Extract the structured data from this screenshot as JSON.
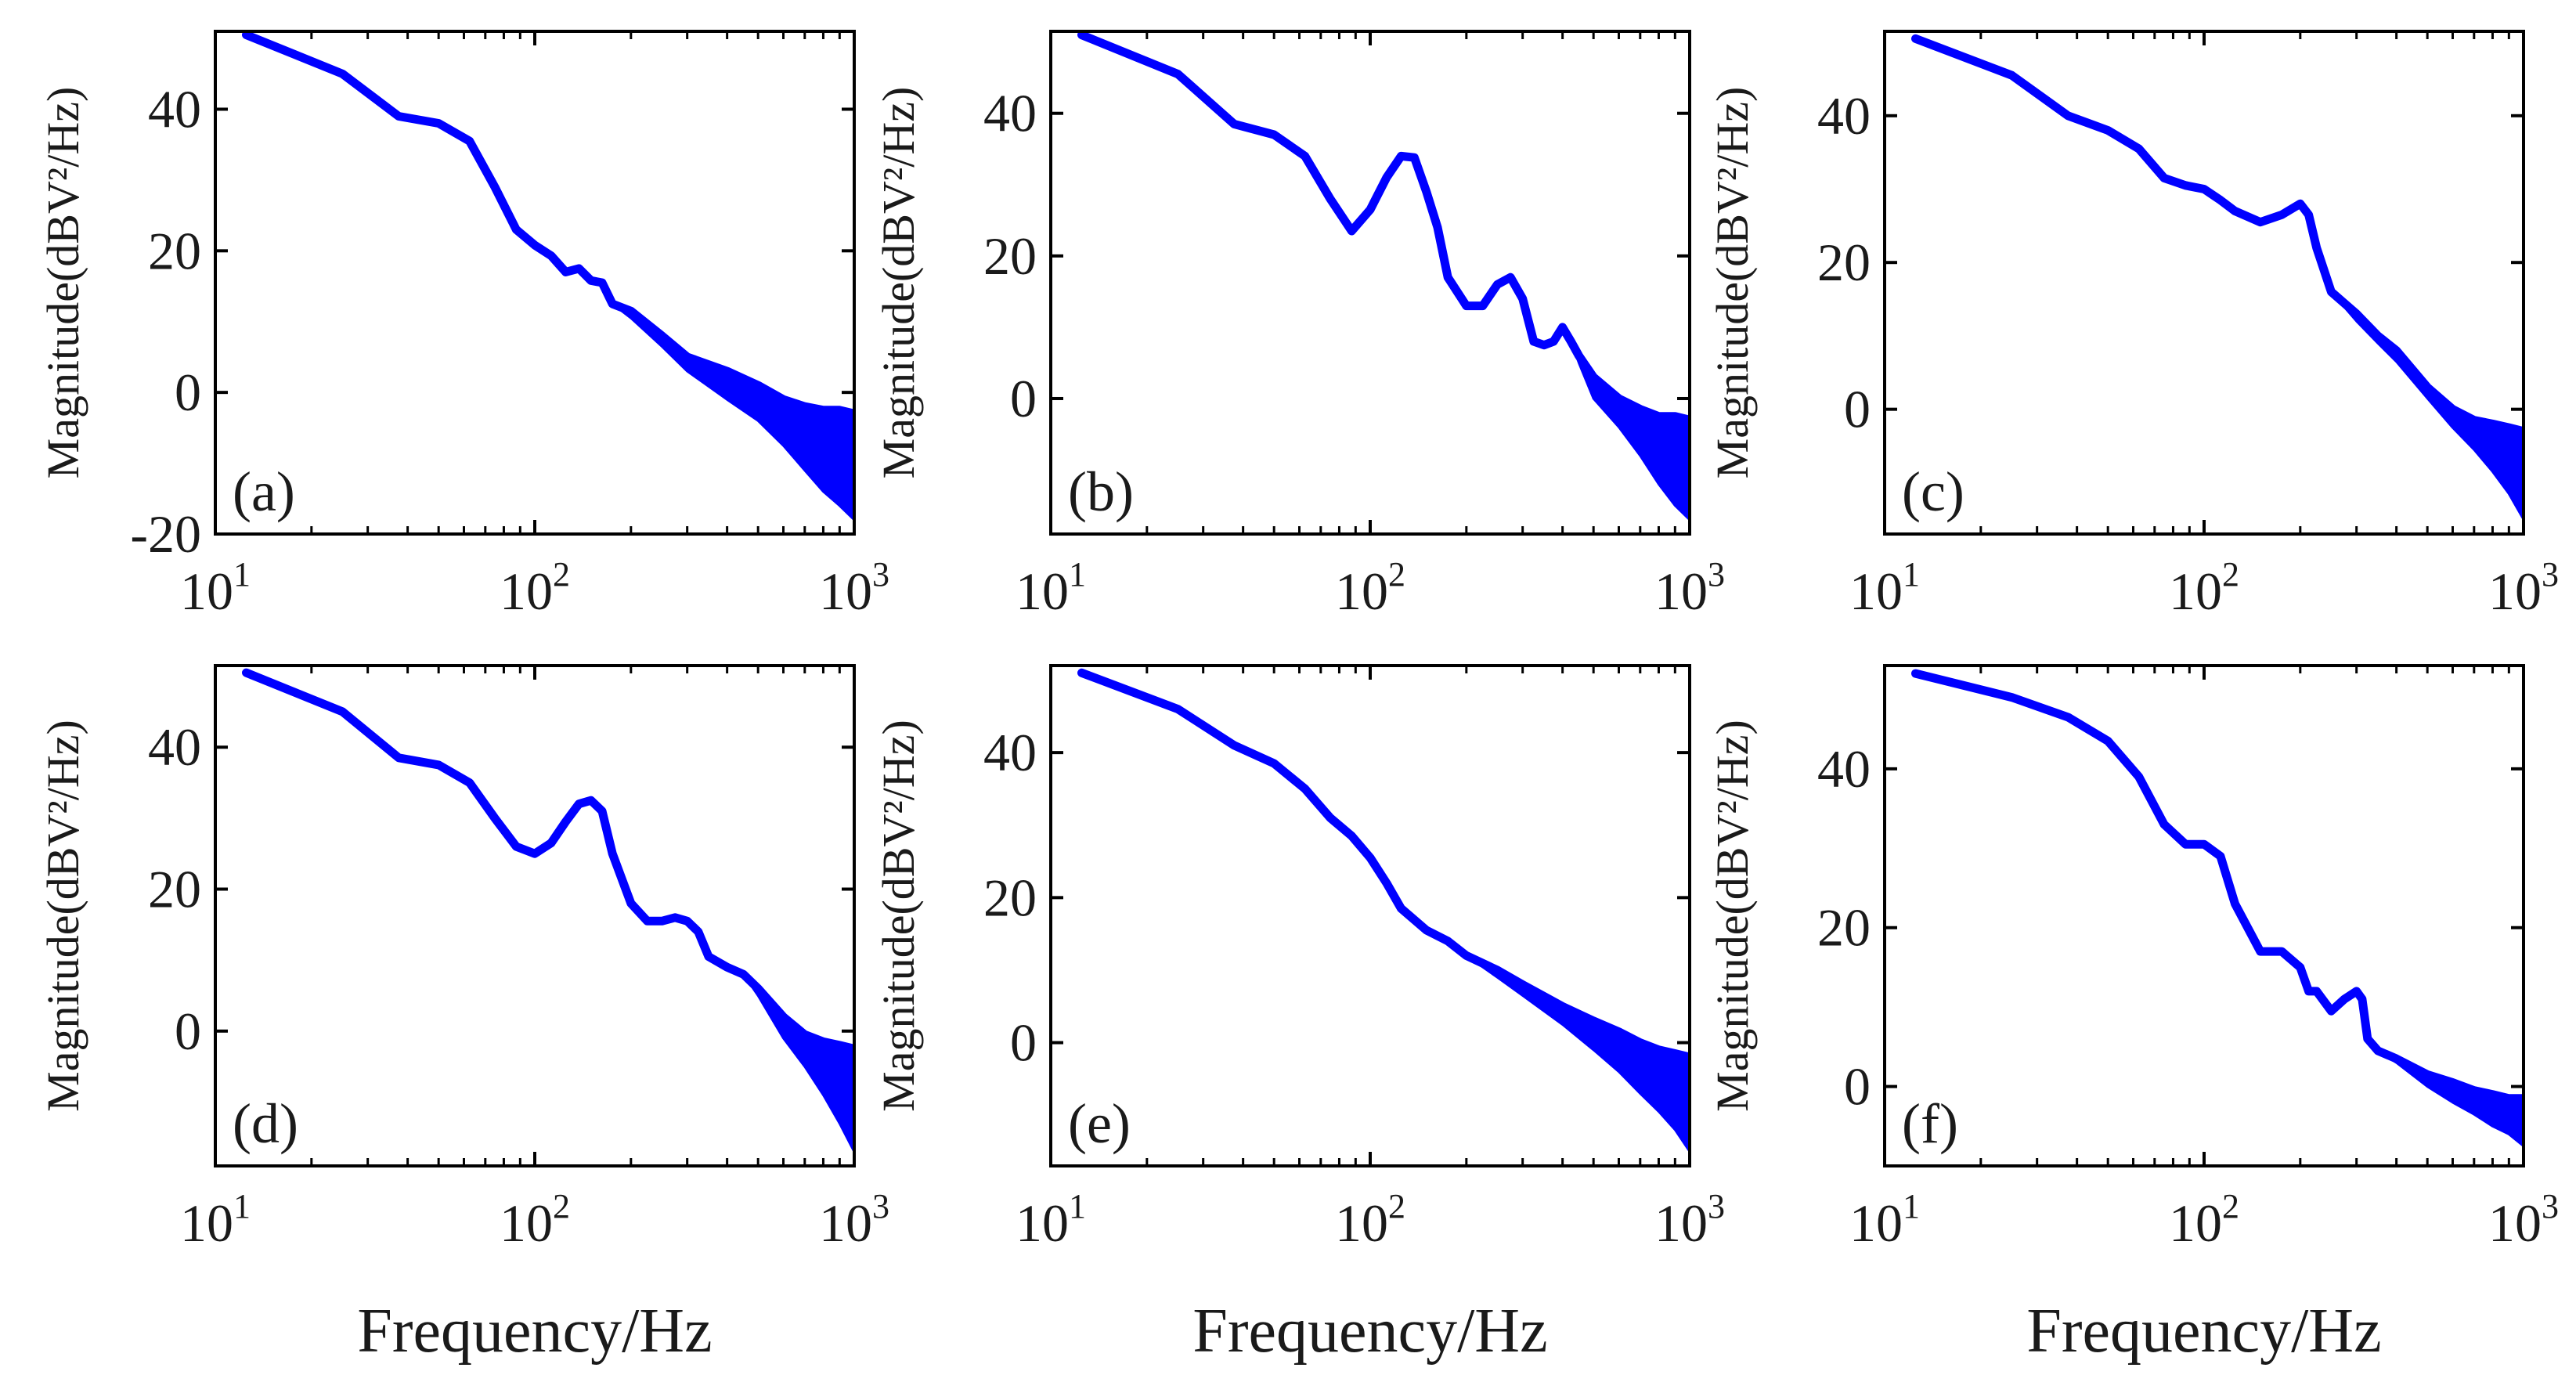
{
  "figure": {
    "xlabel": "Frequency/Hz",
    "ylabel": "Magnitude(dBV²/Hz)",
    "line_color": "#0000ff",
    "axis_color": "#000000"
  },
  "chart_data": [
    {
      "type": "line",
      "panel_label": "(a)",
      "xscale": "log",
      "xlim": [
        10,
        1000
      ],
      "ylim": [
        -20,
        51
      ],
      "xtick_base": "10",
      "xtick_exponents": [
        "1",
        "2",
        "3"
      ],
      "yticks": [
        -20,
        0,
        20,
        40
      ],
      "ytick_labels": [
        "-20",
        "0",
        "20",
        "40"
      ],
      "xlabel_shown": false,
      "ylabel": "Magnitude(dBV²/Hz)",
      "x": [
        12.5,
        25,
        37.5,
        50,
        62.5,
        75,
        87.5,
        100,
        112.5,
        125,
        137.5,
        150,
        162.5,
        175,
        200,
        250,
        300,
        400,
        500,
        600,
        700,
        800,
        900,
        1000
      ],
      "y": [
        50.5,
        45,
        39,
        38,
        35.5,
        29,
        23,
        20.8,
        19.3,
        17,
        17.5,
        15.8,
        15.5,
        12.5,
        11.5,
        8,
        5,
        3,
        1,
        -1,
        -2,
        -2.5,
        -2.5,
        -3
      ],
      "y_lower": [
        50.5,
        45,
        39,
        38,
        35.5,
        29,
        23,
        20.8,
        19.3,
        17,
        17.5,
        15.8,
        15.5,
        12.5,
        10.5,
        6.5,
        3,
        -1,
        -4,
        -7.5,
        -11,
        -14,
        -16,
        -18
      ]
    },
    {
      "type": "line",
      "panel_label": "(b)",
      "xscale": "log",
      "xlim": [
        10,
        1000
      ],
      "ylim": [
        -19,
        51.5
      ],
      "xtick_base": "10",
      "xtick_exponents": [
        "1",
        "2",
        "3"
      ],
      "yticks": [
        0,
        20,
        40
      ],
      "ytick_labels": [
        "0",
        "20",
        "40"
      ],
      "xlabel_shown": false,
      "ylabel": "Magnitude(dBV²/Hz)",
      "x": [
        12.5,
        25,
        37.5,
        50,
        62.5,
        75,
        87.5,
        100,
        112.5,
        125,
        137.5,
        150,
        162.5,
        175,
        200,
        225,
        250,
        275,
        300,
        325,
        350,
        375,
        400,
        425,
        450,
        500,
        600,
        700,
        800,
        900,
        1000
      ],
      "y": [
        51,
        45.5,
        38.5,
        37,
        34,
        28,
        23.5,
        26.5,
        31,
        34,
        33.8,
        29,
        24,
        17,
        13,
        13,
        16,
        17,
        14,
        8,
        7.5,
        8,
        10,
        8,
        6,
        3,
        0,
        -1.5,
        -2.5,
        -2.5,
        -3
      ],
      "y_lower": [
        51,
        45.5,
        38.5,
        37,
        34,
        28,
        23.5,
        26.5,
        31,
        34,
        33.8,
        29,
        24,
        17,
        13,
        13,
        16,
        17,
        14,
        8,
        7.5,
        8,
        10,
        8,
        5,
        0,
        -4,
        -8,
        -12,
        -15,
        -17
      ]
    },
    {
      "type": "line",
      "panel_label": "(c)",
      "xscale": "log",
      "xlim": [
        10,
        1000
      ],
      "ylim": [
        -17,
        51.5
      ],
      "xtick_base": "10",
      "xtick_exponents": [
        "1",
        "2",
        "3"
      ],
      "yticks": [
        0,
        20,
        40
      ],
      "ytick_labels": [
        "0",
        "20",
        "40"
      ],
      "xlabel_shown": false,
      "ylabel": "Magnitude(dBV²/Hz)",
      "x": [
        12.5,
        25,
        37.5,
        50,
        62.5,
        75,
        87.5,
        100,
        112.5,
        125,
        150,
        175,
        200,
        212.5,
        225,
        250,
        300,
        350,
        400,
        500,
        600,
        700,
        800,
        900,
        1000
      ],
      "y": [
        50.5,
        45.5,
        40,
        38,
        35.5,
        31.5,
        30.5,
        30,
        28.5,
        27,
        25.5,
        26.5,
        28,
        26.5,
        22,
        16,
        13,
        10,
        8,
        3,
        0,
        -1.5,
        -2,
        -2.5,
        -3
      ],
      "y_lower": [
        50.5,
        45.5,
        40,
        38,
        35.5,
        31.5,
        30.5,
        30,
        28.5,
        27,
        25.5,
        26.5,
        28,
        26.5,
        22,
        16,
        12,
        9,
        6.5,
        1.5,
        -2.5,
        -5.5,
        -8.5,
        -11.5,
        -15
      ]
    },
    {
      "type": "line",
      "panel_label": "(d)",
      "xscale": "log",
      "xlim": [
        10,
        1000
      ],
      "ylim": [
        -19,
        51.5
      ],
      "xtick_base": "10",
      "xtick_exponents": [
        "1",
        "2",
        "3"
      ],
      "yticks": [
        0,
        20,
        40
      ],
      "ytick_labels": [
        "0",
        "20",
        "40"
      ],
      "xlabel_shown": true,
      "xlabel": "Frequency/Hz",
      "ylabel": "Magnitude(dBV²/Hz)",
      "x": [
        12.5,
        25,
        37.5,
        50,
        62.5,
        75,
        87.5,
        100,
        112.5,
        125,
        137.5,
        150,
        162.5,
        175,
        200,
        225,
        250,
        275,
        300,
        325,
        350,
        400,
        450,
        500,
        600,
        700,
        800,
        900,
        1000
      ],
      "y": [
        50.5,
        45,
        38.5,
        37.5,
        35,
        30,
        26,
        25,
        26.5,
        29.5,
        32,
        32.5,
        31,
        25,
        18,
        15.5,
        15.5,
        16,
        15.5,
        14,
        10.5,
        9,
        8,
        6,
        2,
        -0.5,
        -1.5,
        -2,
        -2.5
      ],
      "y_lower": [
        50.5,
        45,
        38.5,
        37.5,
        35,
        30,
        26,
        25,
        26.5,
        29.5,
        32,
        32.5,
        31,
        25,
        18,
        15.5,
        15.5,
        16,
        15.5,
        14,
        10.5,
        9,
        8,
        5,
        -1,
        -5,
        -9,
        -13,
        -17
      ]
    },
    {
      "type": "line",
      "panel_label": "(e)",
      "xscale": "log",
      "xlim": [
        10,
        1000
      ],
      "ylim": [
        -17,
        52
      ],
      "xtick_base": "10",
      "xtick_exponents": [
        "1",
        "2",
        "3"
      ],
      "yticks": [
        0,
        20,
        40
      ],
      "ytick_labels": [
        "0",
        "20",
        "40"
      ],
      "xlabel_shown": true,
      "xlabel": "Frequency/Hz",
      "ylabel": "Magnitude(dBV²/Hz)",
      "x": [
        12.5,
        25,
        37.5,
        50,
        62.5,
        75,
        87.5,
        100,
        112.5,
        125,
        150,
        175,
        200,
        250,
        300,
        400,
        500,
        600,
        700,
        800,
        900,
        1000
      ],
      "y": [
        51,
        46,
        41,
        38.5,
        35,
        31,
        28.5,
        25.5,
        22,
        18.5,
        15.5,
        14,
        12,
        10,
        8,
        5,
        3,
        1.5,
        0,
        -1,
        -1.5,
        -2
      ],
      "y_lower": [
        51,
        46,
        41,
        38.5,
        35,
        31,
        28.5,
        25.5,
        22,
        18.5,
        15.5,
        14,
        12,
        9,
        6.5,
        2.5,
        -1,
        -4,
        -7,
        -9.5,
        -12,
        -15
      ]
    },
    {
      "type": "line",
      "panel_label": "(f)",
      "xscale": "log",
      "xlim": [
        10,
        1000
      ],
      "ylim": [
        -10,
        53
      ],
      "xtick_base": "10",
      "xtick_exponents": [
        "1",
        "2",
        "3"
      ],
      "yticks": [
        0,
        20,
        40
      ],
      "ytick_labels": [
        "0",
        "20",
        "40"
      ],
      "xlabel_shown": true,
      "xlabel": "Frequency/Hz",
      "ylabel": "Magnitude(dBV²/Hz)",
      "x": [
        12.5,
        25,
        37.5,
        50,
        62.5,
        75,
        87.5,
        100,
        112.5,
        125,
        150,
        175,
        200,
        212.5,
        225,
        250,
        275,
        300,
        312.5,
        325,
        350,
        400,
        500,
        600,
        700,
        800,
        900,
        1000
      ],
      "y": [
        52,
        49,
        46.5,
        43.5,
        39,
        33,
        30.5,
        30.5,
        29,
        23,
        17,
        17,
        15,
        12,
        12,
        9.5,
        11,
        12,
        11,
        6,
        4.5,
        3.5,
        1.5,
        0.5,
        -0.5,
        -1,
        -1.5,
        -1.5
      ],
      "y_lower": [
        52,
        49,
        46.5,
        43.5,
        39,
        33,
        30.5,
        30.5,
        29,
        23,
        17,
        17,
        15,
        12,
        12,
        9.5,
        11,
        12,
        11,
        6,
        4.5,
        3,
        0,
        -2,
        -3.5,
        -5,
        -6,
        -7.5
      ]
    }
  ]
}
